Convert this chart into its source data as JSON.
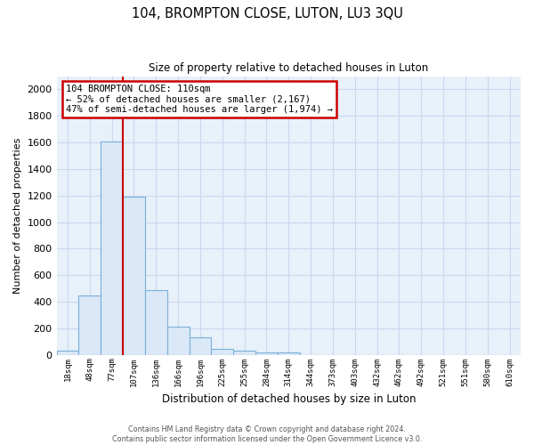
{
  "title": "104, BROMPTON CLOSE, LUTON, LU3 3QU",
  "subtitle": "Size of property relative to detached houses in Luton",
  "xlabel": "Distribution of detached houses by size in Luton",
  "ylabel": "Number of detached properties",
  "bar_color": "#dae8f7",
  "bar_edge_color": "#7ab0d8",
  "background_color": "#e8f0fa",
  "grid_color": "#c8d8ee",
  "categories": [
    "18sqm",
    "48sqm",
    "77sqm",
    "107sqm",
    "136sqm",
    "166sqm",
    "196sqm",
    "225sqm",
    "255sqm",
    "284sqm",
    "314sqm",
    "344sqm",
    "373sqm",
    "403sqm",
    "432sqm",
    "462sqm",
    "492sqm",
    "521sqm",
    "551sqm",
    "580sqm",
    "610sqm"
  ],
  "values": [
    30,
    450,
    1610,
    1190,
    490,
    210,
    130,
    45,
    30,
    20,
    15,
    0,
    0,
    0,
    0,
    0,
    0,
    0,
    0,
    0,
    0
  ],
  "ylim": [
    0,
    2100
  ],
  "yticks": [
    0,
    200,
    400,
    600,
    800,
    1000,
    1200,
    1400,
    1600,
    1800,
    2000
  ],
  "vline_x": 2.5,
  "vline_color": "#cc0000",
  "annotation_text": "104 BROMPTON CLOSE: 110sqm\n← 52% of detached houses are smaller (2,167)\n47% of semi-detached houses are larger (1,974) →",
  "annotation_box_color": "#ffffff",
  "annotation_box_edge": "#cc0000",
  "footer_line1": "Contains HM Land Registry data © Crown copyright and database right 2024.",
  "footer_line2": "Contains public sector information licensed under the Open Government Licence v3.0."
}
